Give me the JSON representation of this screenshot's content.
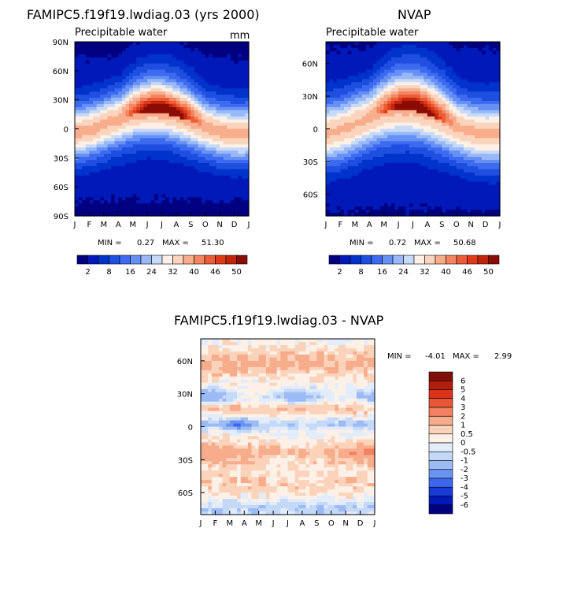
{
  "palette_abs": [
    "#000080",
    "#0019b8",
    "#0033cc",
    "#1f4fe0",
    "#3d6bf0",
    "#6690f5",
    "#99b8f8",
    "#c7dafa",
    "#fdf0e6",
    "#fbd4bd",
    "#f8ad8c",
    "#f38561",
    "#ec5c37",
    "#e03b18",
    "#c1260c",
    "#8a0c05"
  ],
  "palette_diff": [
    "#000080",
    "#0019b8",
    "#1a3ad6",
    "#3d66ec",
    "#6a93f2",
    "#9cbaf5",
    "#c4d8f8",
    "#e2ecfb",
    "#fdf1e7",
    "#fbd3bb",
    "#f7ad8c",
    "#f28061",
    "#e95736",
    "#d9331a",
    "#b11d0a",
    "#80100a"
  ],
  "month_ticks": [
    "J",
    "F",
    "M",
    "A",
    "M",
    "J",
    "J",
    "A",
    "S",
    "O",
    "N",
    "D",
    "J"
  ],
  "lat_ticks_left": [
    "90N",
    "60N",
    "30N",
    "0",
    "30S",
    "60S",
    "90S"
  ],
  "lat_ticks_right": [
    "60N",
    "30N",
    "0",
    "30S",
    "60S"
  ],
  "lat_ticks_diff": [
    "60N",
    "30N",
    "0",
    "30S",
    "60S"
  ],
  "chart_data": [
    {
      "type": "heatmap",
      "title": "FAMIPC5.f19f19.lwdiag.03 (yrs 2000)",
      "subtitle": "Precipitable water",
      "units": "mm",
      "xlabel": "",
      "ylabel": "",
      "min_label": "MIN =",
      "min_value": "0.27",
      "max_label": "MAX =",
      "max_value": "51.30",
      "peak": 51.3,
      "ylim": [
        -90,
        90
      ],
      "colorbar_labels": [
        "2",
        "8",
        "16",
        "24",
        "32",
        "40",
        "46",
        "50"
      ]
    },
    {
      "type": "heatmap",
      "title": "NVAP",
      "subtitle": "Precipitable water",
      "xlabel": "",
      "ylabel": "",
      "min_label": "MIN =",
      "min_value": "0.72",
      "max_label": "MAX =",
      "max_value": "50.68",
      "peak": 50.68,
      "ylim": [
        -80,
        80
      ],
      "colorbar_labels": [
        "2",
        "8",
        "16",
        "24",
        "32",
        "40",
        "46",
        "50"
      ]
    },
    {
      "type": "heatmap",
      "title": "FAMIPC5.f19f19.lwdiag.03 - NVAP",
      "xlabel": "",
      "ylabel": "",
      "min_label": "MIN =",
      "min_value": "-4.01",
      "max_label": "MAX =",
      "max_value": "2.99",
      "ylim": [
        -80,
        80
      ],
      "colorbar_labels": [
        "6",
        "5",
        "4",
        "3",
        "2",
        "1",
        "0.5",
        "0",
        "-0.5",
        "-1",
        "-2",
        "-3",
        "-4",
        "-5",
        "-6"
      ]
    }
  ]
}
